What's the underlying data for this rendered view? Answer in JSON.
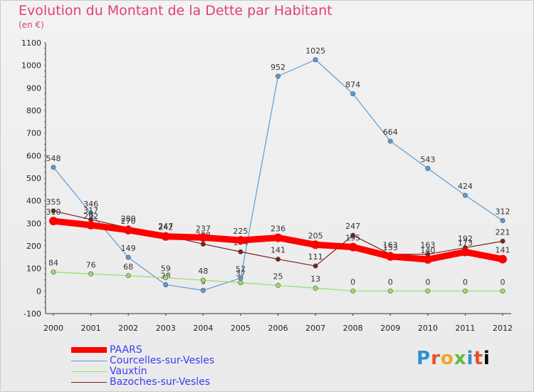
{
  "title": "Evolution du Montant de la Dette par Habitant",
  "subtitle": "(en €)",
  "logo": {
    "text": "Proxiti",
    "letters": [
      "P",
      "r",
      "o",
      "x",
      "i",
      "t",
      "i"
    ]
  },
  "legend": [
    {
      "name": "PAARS",
      "color": "#ff0000"
    },
    {
      "name": "Courcelles-sur-Vesles",
      "color": "#5b9bd5"
    },
    {
      "name": "Vauxtin",
      "color": "#99dd66"
    },
    {
      "name": "Bazoches-sur-Vesles",
      "color": "#7a2222"
    }
  ],
  "chart_data": {
    "type": "line",
    "title": "Evolution du Montant de la Dette par Habitant",
    "subtitle": "(en €)",
    "x": [
      "2000",
      "2001",
      "2002",
      "2003",
      "2004",
      "2005",
      "2006",
      "2007",
      "2008",
      "2009",
      "2010",
      "2011",
      "2012"
    ],
    "ylim": [
      -100,
      1100
    ],
    "yticks": [
      -100,
      0,
      100,
      200,
      300,
      400,
      500,
      600,
      700,
      800,
      900,
      1000,
      1100
    ],
    "grid": false,
    "legend_position": "bottom-left",
    "series": [
      {
        "name": "PAARS",
        "color": "#ff0000",
        "values": [
          310,
          292,
          270,
          242,
          237,
          225,
          236,
          205,
          195,
          153,
          140,
          173,
          141
        ]
      },
      {
        "name": "Courcelles-sur-Vesles",
        "color": "#5b9bd5",
        "values": [
          548,
          346,
          149,
          28,
          3,
          57,
          952,
          1025,
          874,
          664,
          543,
          424,
          312
        ]
      },
      {
        "name": "Vauxtin",
        "color": "#99dd66",
        "values": [
          84,
          76,
          68,
          59,
          48,
          37,
          25,
          13,
          0,
          0,
          0,
          0,
          0
        ]
      },
      {
        "name": "Bazoches-sur-Vesles",
        "color": "#7a2222",
        "values": [
          355,
          317,
          280,
          247,
          208,
          174,
          141,
          111,
          247,
          163,
          163,
          192,
          221
        ]
      }
    ]
  }
}
